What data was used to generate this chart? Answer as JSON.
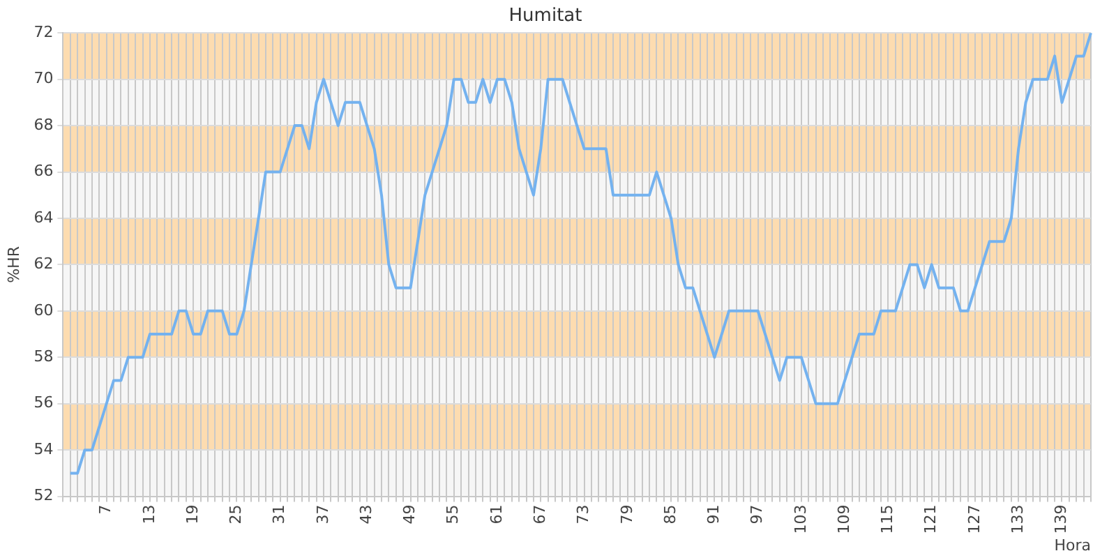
{
  "chart_data": {
    "type": "line",
    "title": "Humitat",
    "xlabel": "Hora",
    "ylabel": "%HR",
    "categories": [
      null,
      null,
      null,
      null,
      null,
      null,
      "7",
      null,
      null,
      null,
      null,
      null,
      "13",
      null,
      null,
      null,
      null,
      null,
      "19",
      null,
      null,
      null,
      null,
      null,
      "25",
      null,
      null,
      null,
      null,
      null,
      "31",
      null,
      null,
      null,
      null,
      null,
      "37",
      null,
      null,
      null,
      null,
      null,
      "43",
      null,
      null,
      null,
      null,
      null,
      "49",
      null,
      null,
      null,
      null,
      null,
      "55",
      null,
      null,
      null,
      null,
      null,
      "61",
      null,
      null,
      null,
      null,
      null,
      "67",
      null,
      null,
      null,
      null,
      null,
      "73",
      null,
      null,
      null,
      null,
      null,
      "79",
      null,
      null,
      null,
      null,
      null,
      "85",
      null,
      null,
      null,
      null,
      null,
      "91",
      null,
      null,
      null,
      null,
      null,
      "97",
      null,
      null,
      null,
      null,
      null,
      "103",
      null,
      null,
      null,
      null,
      null,
      "109",
      null,
      null,
      null,
      null,
      null,
      "115",
      null,
      null,
      null,
      null,
      null,
      "121",
      null,
      null,
      null,
      null,
      null,
      "127",
      null,
      null,
      null,
      null,
      null,
      "133",
      null,
      null,
      null,
      null,
      null,
      "139",
      null,
      null,
      null,
      null
    ],
    "series": [
      {
        "color": "#74b2ef",
        "values": [
          null,
          53,
          53,
          54,
          54,
          55,
          56,
          57,
          57,
          58,
          58,
          58,
          59,
          59,
          59,
          59,
          60,
          60,
          59,
          59,
          60,
          60,
          60,
          59,
          59,
          60,
          62,
          64,
          66,
          66,
          66,
          67,
          68,
          68,
          67,
          69,
          70,
          69,
          68,
          69,
          69,
          69,
          68,
          67,
          65,
          62,
          61,
          61,
          61,
          63,
          65,
          66,
          67,
          68,
          70,
          70,
          69,
          69,
          70,
          69,
          70,
          70,
          69,
          67,
          66,
          65,
          67,
          70,
          70,
          70,
          69,
          68,
          67,
          67,
          67,
          67,
          65,
          65,
          65,
          65,
          65,
          65,
          66,
          65,
          64,
          62,
          61,
          61,
          60,
          59,
          58,
          59,
          60,
          60,
          60,
          60,
          60,
          59,
          58,
          57,
          58,
          58,
          58,
          57,
          56,
          56,
          56,
          56,
          57,
          58,
          59,
          59,
          59,
          60,
          60,
          60,
          61,
          62,
          62,
          61,
          62,
          61,
          61,
          61,
          60,
          60,
          61,
          62,
          63,
          63,
          63,
          64,
          67,
          69,
          70,
          70,
          70,
          71,
          69,
          70,
          71,
          71,
          72
        ]
      }
    ],
    "ylim": [
      52,
      72
    ],
    "yticks": [
      52,
      54,
      56,
      58,
      60,
      62,
      64,
      66,
      68,
      70,
      72
    ],
    "bands": [
      {
        "axis": "y",
        "from": 54,
        "to": 56,
        "color": "#fddcb0"
      },
      {
        "axis": "y",
        "from": 58,
        "to": 60,
        "color": "#fddcb0"
      },
      {
        "axis": "y",
        "from": 62,
        "to": 64,
        "color": "#fddcb0"
      },
      {
        "axis": "y",
        "from": 66,
        "to": 68,
        "color": "#fddcb0"
      },
      {
        "axis": "y",
        "from": 70,
        "to": 72,
        "color": "#fddcb0"
      }
    ],
    "grid": true,
    "legend": false,
    "marker": "none",
    "line_style": "solid"
  }
}
